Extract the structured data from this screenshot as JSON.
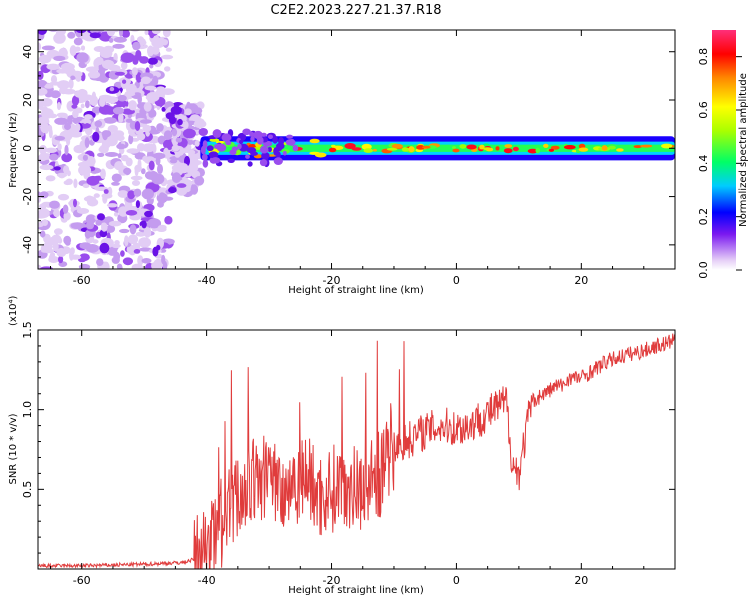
{
  "title": "C2E2.2023.227.21.37.R18",
  "chart_data": [
    {
      "type": "heatmap",
      "xlabel": "Height of straight line (km)",
      "ylabel": "Frequency (Hz)",
      "xlim": [
        -67,
        35
      ],
      "ylim": [
        -50,
        49
      ],
      "xticks": [
        -60,
        -40,
        -20,
        0,
        20
      ],
      "yticks": [
        -40,
        -20,
        0,
        20,
        40
      ],
      "xtick_labels": [
        "-60",
        "-40",
        "-20",
        "0",
        "20"
      ],
      "ytick_labels": [
        "-40",
        "-20",
        "0",
        "20",
        "40"
      ],
      "colorbar": {
        "label": "Normalized spectral amplitude",
        "range": [
          0,
          0.9
        ],
        "ticks": [
          0.0,
          0.2,
          0.4,
          0.6,
          0.8
        ],
        "tick_labels": [
          "0.0",
          "0.2",
          "0.4",
          "0.6",
          "0.8"
        ]
      },
      "features": {
        "scattered_region_x": [
          -67,
          -41
        ],
        "band_start_x": -41,
        "band_center_y": 0,
        "band_halfwidth_hz": 5
      }
    },
    {
      "type": "line",
      "xlabel": "Height of straight line (km)",
      "ylabel": "SNR (10 * v/v)",
      "y_multiplier": "(x10⁴)",
      "xlim": [
        -67,
        35
      ],
      "ylim": [
        0,
        1.5
      ],
      "xticks": [
        -60,
        -40,
        -20,
        0,
        20
      ],
      "yticks": [
        0.5,
        1.0,
        1.5
      ],
      "xtick_labels": [
        "-60",
        "-40",
        "-20",
        "0",
        "20"
      ],
      "ytick_labels": [
        "0.5",
        "1.0",
        "1.5"
      ],
      "color": "#e03c3c",
      "x": [
        -67,
        -60,
        -50,
        -44,
        -42,
        -40,
        -38,
        -36,
        -34,
        -32,
        -30,
        -28,
        -26,
        -24,
        -22,
        -20,
        -18,
        -16,
        -14,
        -12,
        -10,
        -8,
        -6,
        -4,
        -2,
        0,
        2,
        4,
        6,
        8,
        9,
        10,
        12,
        14,
        16,
        17,
        18,
        20,
        22,
        24,
        26,
        28,
        30,
        32,
        34,
        35
      ],
      "y": [
        0.02,
        0.02,
        0.03,
        0.04,
        0.06,
        0.15,
        0.25,
        0.4,
        0.5,
        0.55,
        0.6,
        0.5,
        0.55,
        0.6,
        0.45,
        0.5,
        0.55,
        0.5,
        0.55,
        0.6,
        0.75,
        0.8,
        0.85,
        0.88,
        0.9,
        0.88,
        0.9,
        0.95,
        1.0,
        1.05,
        0.65,
        0.6,
        1.05,
        1.1,
        1.15,
        1.15,
        1.2,
        1.2,
        1.25,
        1.3,
        1.33,
        1.35,
        1.37,
        1.4,
        1.42,
        1.45
      ]
    }
  ]
}
